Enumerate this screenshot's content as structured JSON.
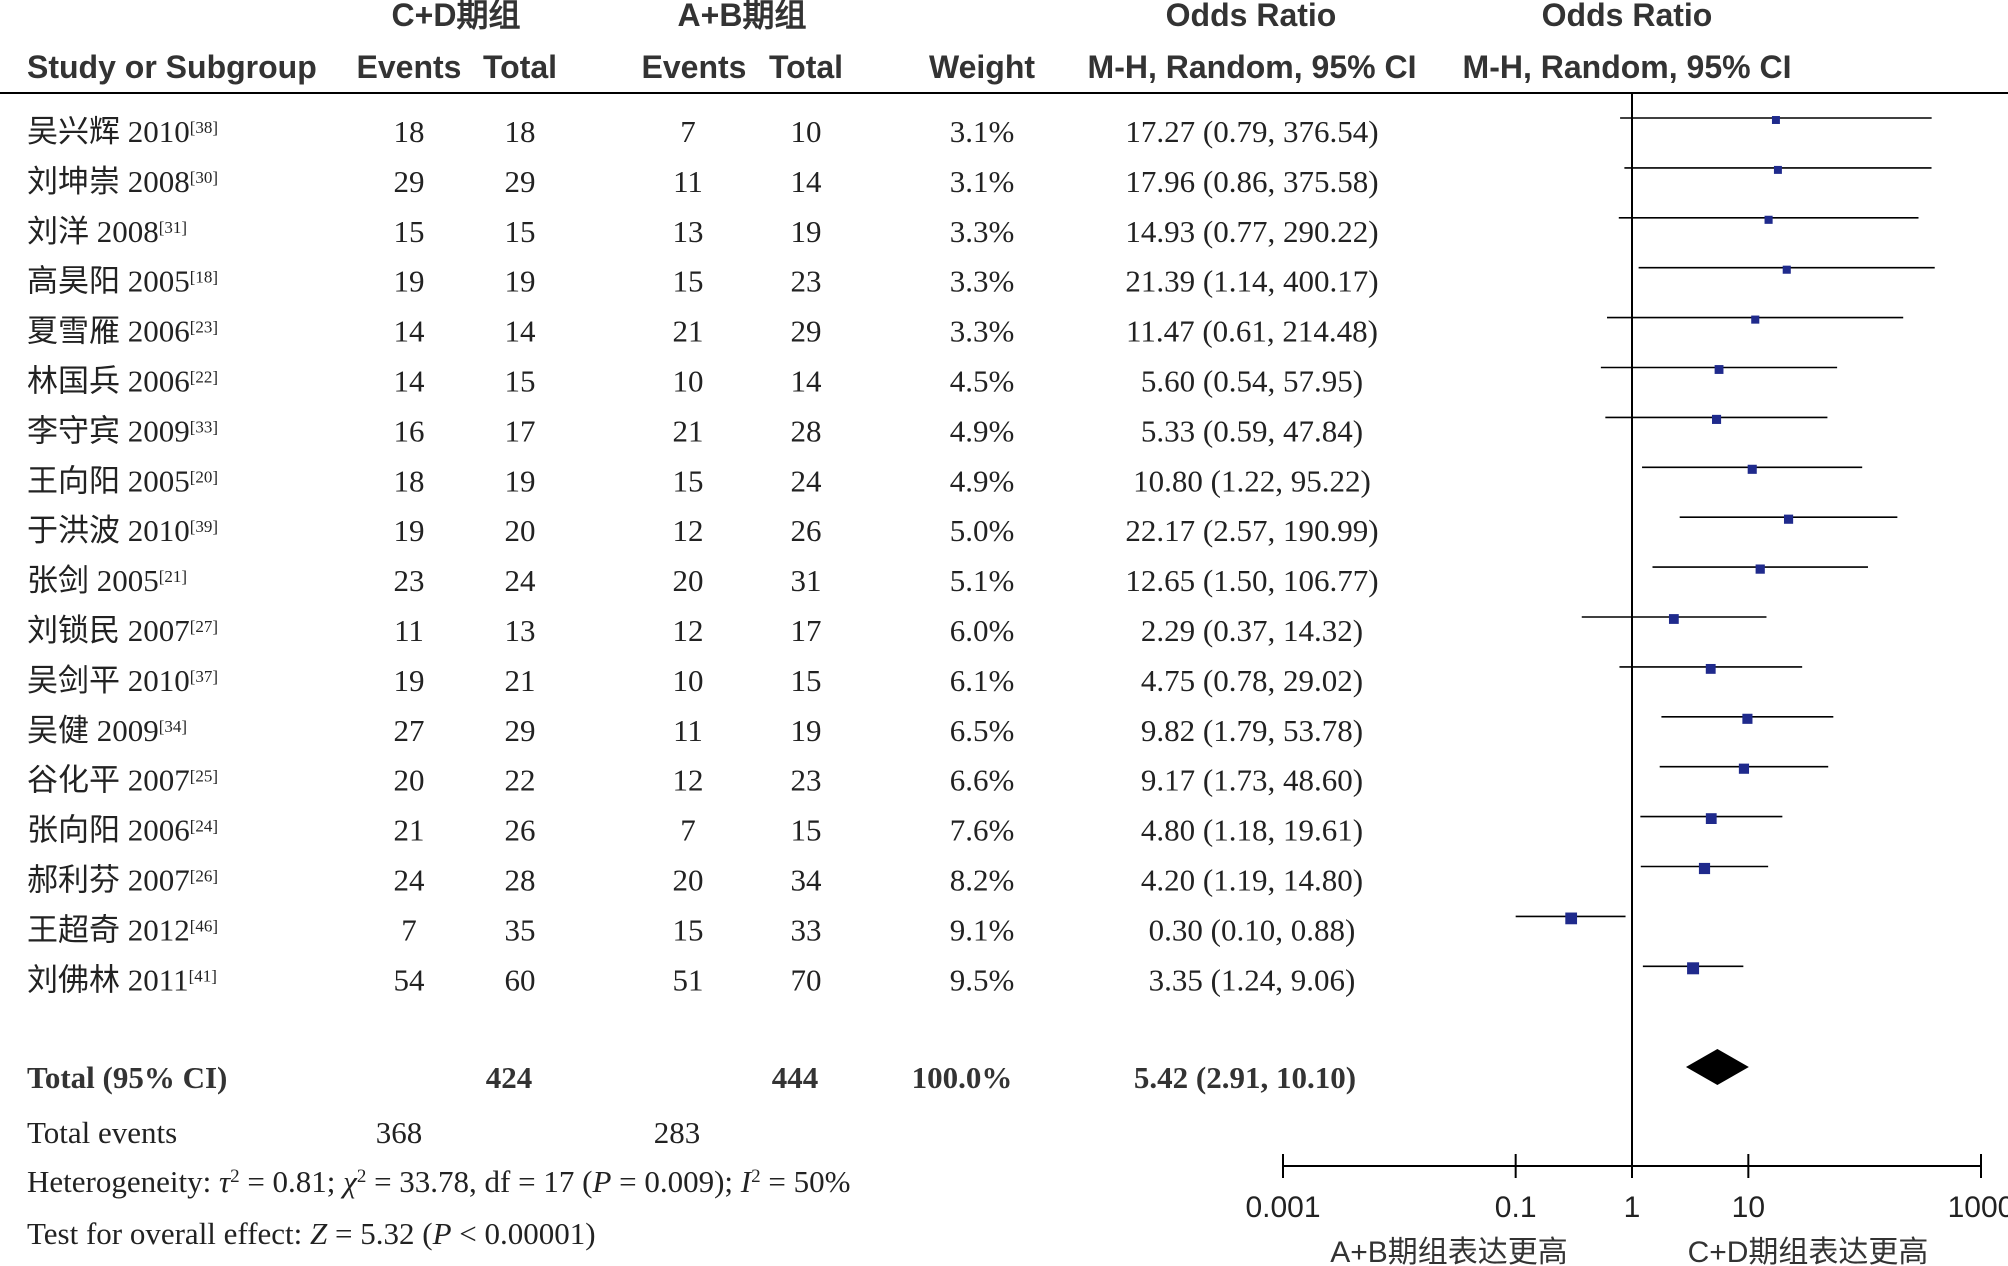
{
  "chart_data": {
    "type": "forest",
    "header": {
      "group1": "C+D期组",
      "group2": "A+B期组",
      "or_title": "Odds Ratio",
      "method": "M-H, Random, 95% CI",
      "study_col": "Study or Subgroup",
      "events": "Events",
      "total": "Total",
      "weight": "Weight"
    },
    "studies": [
      {
        "name": "吴兴辉 2010",
        "ref": "[38]",
        "e1": "18",
        "t1": "18",
        "e2": "7",
        "t2": "10",
        "weight": "3.1%",
        "or_text": "17.27 (0.79, 376.54)",
        "or": 17.27,
        "lo": 0.79,
        "hi": 376.54
      },
      {
        "name": "刘坤崇 2008",
        "ref": "[30]",
        "e1": "29",
        "t1": "29",
        "e2": "11",
        "t2": "14",
        "weight": "3.1%",
        "or_text": "17.96 (0.86, 375.58)",
        "or": 17.96,
        "lo": 0.86,
        "hi": 375.58
      },
      {
        "name": "刘洋 2008",
        "ref": "[31]",
        "e1": "15",
        "t1": "15",
        "e2": "13",
        "t2": "19",
        "weight": "3.3%",
        "or_text": "14.93 (0.77, 290.22)",
        "or": 14.93,
        "lo": 0.77,
        "hi": 290.22
      },
      {
        "name": "高昊阳 2005",
        "ref": "[18]",
        "e1": "19",
        "t1": "19",
        "e2": "15",
        "t2": "23",
        "weight": "3.3%",
        "or_text": "21.39 (1.14, 400.17)",
        "or": 21.39,
        "lo": 1.14,
        "hi": 400.17
      },
      {
        "name": "夏雪雁 2006",
        "ref": "[23]",
        "e1": "14",
        "t1": "14",
        "e2": "21",
        "t2": "29",
        "weight": "3.3%",
        "or_text": "11.47 (0.61, 214.48)",
        "or": 11.47,
        "lo": 0.61,
        "hi": 214.48
      },
      {
        "name": "林国兵 2006",
        "ref": "[22]",
        "e1": "14",
        "t1": "15",
        "e2": "10",
        "t2": "14",
        "weight": "4.5%",
        "or_text": "5.60 (0.54, 57.95)",
        "or": 5.6,
        "lo": 0.54,
        "hi": 57.95
      },
      {
        "name": "李守宾 2009",
        "ref": "[33]",
        "e1": "16",
        "t1": "17",
        "e2": "21",
        "t2": "28",
        "weight": "4.9%",
        "or_text": "5.33 (0.59, 47.84)",
        "or": 5.33,
        "lo": 0.59,
        "hi": 47.84
      },
      {
        "name": "王向阳 2005",
        "ref": "[20]",
        "e1": "18",
        "t1": "19",
        "e2": "15",
        "t2": "24",
        "weight": "4.9%",
        "or_text": "10.80 (1.22, 95.22)",
        "or": 10.8,
        "lo": 1.22,
        "hi": 95.22
      },
      {
        "name": "于洪波 2010",
        "ref": "[39]",
        "e1": "19",
        "t1": "20",
        "e2": "12",
        "t2": "26",
        "weight": "5.0%",
        "or_text": "22.17 (2.57, 190.99)",
        "or": 22.17,
        "lo": 2.57,
        "hi": 190.99
      },
      {
        "name": "张剑 2005",
        "ref": "[21]",
        "e1": "23",
        "t1": "24",
        "e2": "20",
        "t2": "31",
        "weight": "5.1%",
        "or_text": "12.65 (1.50, 106.77)",
        "or": 12.65,
        "lo": 1.5,
        "hi": 106.77
      },
      {
        "name": "刘锁民 2007",
        "ref": "[27]",
        "e1": "11",
        "t1": "13",
        "e2": "12",
        "t2": "17",
        "weight": "6.0%",
        "or_text": "2.29 (0.37, 14.32)",
        "or": 2.29,
        "lo": 0.37,
        "hi": 14.32
      },
      {
        "name": "吴剑平 2010",
        "ref": "[37]",
        "e1": "19",
        "t1": "21",
        "e2": "10",
        "t2": "15",
        "weight": "6.1%",
        "or_text": "4.75 (0.78, 29.02)",
        "or": 4.75,
        "lo": 0.78,
        "hi": 29.02
      },
      {
        "name": "吴健 2009",
        "ref": "[34]",
        "e1": "27",
        "t1": "29",
        "e2": "11",
        "t2": "19",
        "weight": "6.5%",
        "or_text": "9.82 (1.79, 53.78)",
        "or": 9.82,
        "lo": 1.79,
        "hi": 53.78
      },
      {
        "name": "谷化平 2007",
        "ref": "[25]",
        "e1": "20",
        "t1": "22",
        "e2": "12",
        "t2": "23",
        "weight": "6.6%",
        "or_text": "9.17 (1.73, 48.60)",
        "or": 9.17,
        "lo": 1.73,
        "hi": 48.6
      },
      {
        "name": "张向阳 2006",
        "ref": "[24]",
        "e1": "21",
        "t1": "26",
        "e2": "7",
        "t2": "15",
        "weight": "7.6%",
        "or_text": "4.80 (1.18, 19.61)",
        "or": 4.8,
        "lo": 1.18,
        "hi": 19.61
      },
      {
        "name": "郝利芬 2007",
        "ref": "[26]",
        "e1": "24",
        "t1": "28",
        "e2": "20",
        "t2": "34",
        "weight": "8.2%",
        "or_text": "4.20 (1.19, 14.80)",
        "or": 4.2,
        "lo": 1.19,
        "hi": 14.8
      },
      {
        "name": "王超奇 2012",
        "ref": "[46]",
        "e1": "7",
        "t1": "35",
        "e2": "15",
        "t2": "33",
        "weight": "9.1%",
        "or_text": "0.30 (0.10, 0.88)",
        "or": 0.3,
        "lo": 0.1,
        "hi": 0.88
      },
      {
        "name": "刘佛林 2011",
        "ref": "[41]",
        "e1": "54",
        "t1": "60",
        "e2": "51",
        "t2": "70",
        "weight": "9.5%",
        "or_text": "3.35 (1.24, 9.06)",
        "or": 3.35,
        "lo": 1.24,
        "hi": 9.06
      }
    ],
    "total": {
      "label": "Total (95% CI)",
      "t1": "424",
      "t2": "444",
      "weight": "100.0%",
      "or_text": "5.42 (2.91, 10.10)",
      "or": 5.42,
      "lo": 2.91,
      "hi": 10.1
    },
    "total_events": {
      "label": "Total events",
      "e1": "368",
      "e2": "283"
    },
    "heterogeneity": {
      "label": "Heterogeneity: ",
      "tau2": "0.81",
      "chi2": "33.78",
      "df": "17",
      "p": "0.009",
      "i2": "50%"
    },
    "overall": {
      "label": "Test for overall effect: ",
      "z": "5.32",
      "p": "0.00001"
    },
    "axis": {
      "scale": "log",
      "ticks": [
        0.001,
        0.1,
        1,
        10,
        1000
      ],
      "tick_labels": [
        "0.001",
        "0.1",
        "1",
        "10",
        "1000"
      ],
      "favors_left": "A+B期组表达更高",
      "favors_right": "C+D期组表达更高"
    },
    "colors": {
      "marker": "#1f2a8c",
      "diamond": "#000000",
      "line": "#000000"
    }
  }
}
